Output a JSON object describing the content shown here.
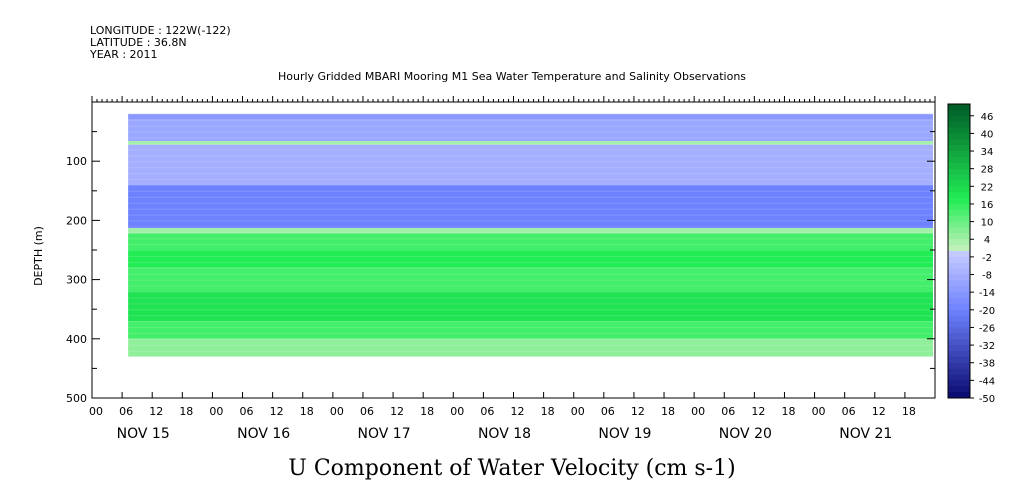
{
  "header": {
    "longitude": "LONGITUDE : 122W(-122)",
    "latitude": "LATITUDE : 36.8N",
    "year": "YEAR : 2011",
    "title": "Hourly Gridded MBARI Mooring M1 Sea Water Temperature and Salinity Observations"
  },
  "chart_data": {
    "type": "heatmap",
    "title": "Hourly Gridded MBARI Mooring M1 Sea Water Temperature and Salinity Observations",
    "xlabel": "",
    "ylabel": "DEPTH (m)",
    "colorbar_label": "U Component of Water Velocity (cm s-1)",
    "ylim": [
      500,
      0
    ],
    "y_inverted": true,
    "y_ticks": [
      100,
      200,
      300,
      400,
      500
    ],
    "x_hour_ticks": [
      "00",
      "06",
      "12",
      "18",
      "00",
      "06",
      "12",
      "18",
      "00",
      "06",
      "12",
      "18",
      "00",
      "06",
      "12",
      "18",
      "00",
      "06",
      "12",
      "18",
      "00",
      "06",
      "12",
      "18",
      "00",
      "06",
      "12",
      "18"
    ],
    "x_day_labels": [
      "NOV 15",
      "NOV 16",
      "NOV 17",
      "NOV 18",
      "NOV 19",
      "NOV 20",
      "NOV 21"
    ],
    "x_range_days": [
      0,
      7
    ],
    "data_x_start_day": 0.3,
    "data_depth_range": [
      20,
      430
    ],
    "depth_bands": [
      {
        "depth": [
          20,
          30
        ],
        "value": -14
      },
      {
        "depth": [
          30,
          66
        ],
        "value": -10
      },
      {
        "depth": [
          66,
          72
        ],
        "value": 4
      },
      {
        "depth": [
          72,
          140
        ],
        "value": -8
      },
      {
        "depth": [
          140,
          213
        ],
        "value": -20
      },
      {
        "depth": [
          213,
          222
        ],
        "value": 4
      },
      {
        "depth": [
          222,
          250
        ],
        "value": 14
      },
      {
        "depth": [
          250,
          280
        ],
        "value": 18
      },
      {
        "depth": [
          280,
          320
        ],
        "value": 14
      },
      {
        "depth": [
          320,
          370
        ],
        "value": 20
      },
      {
        "depth": [
          370,
          400
        ],
        "value": 14
      },
      {
        "depth": [
          400,
          430
        ],
        "value": 6
      }
    ],
    "colorbar_ticks": [
      "46",
      "40",
      "34",
      "28",
      "22",
      "16",
      "10",
      "4",
      "-2",
      "-8",
      "-14",
      "-20",
      "-26",
      "-32",
      "-38",
      "-44",
      "-50"
    ],
    "colorbar_range": [
      -50,
      50
    ],
    "colors": {
      "negative": "#7b8cff",
      "positive": "#22ee55",
      "neutral": "#c8f0c0"
    }
  }
}
